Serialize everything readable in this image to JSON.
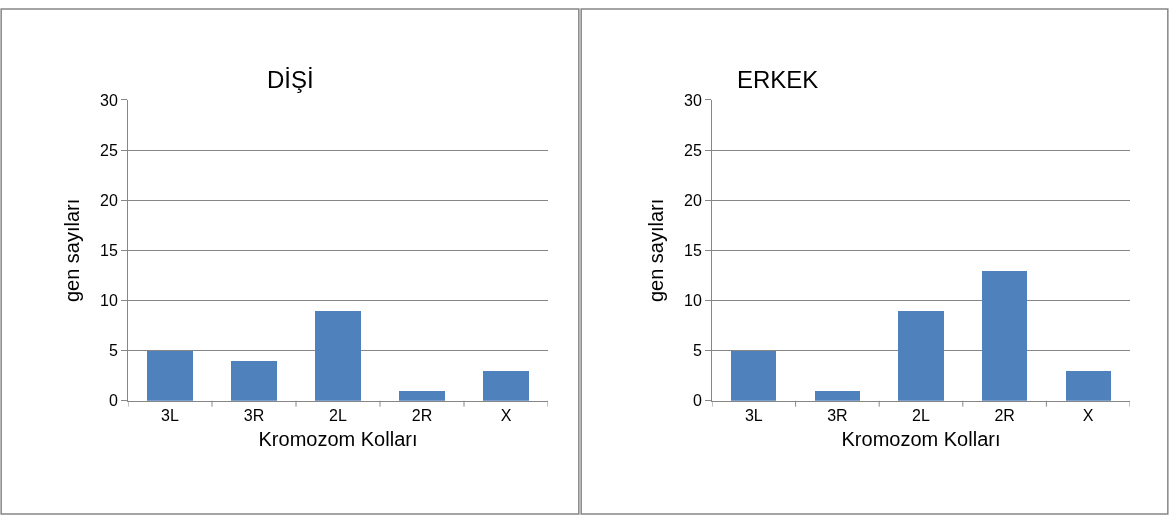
{
  "chart_data": [
    {
      "type": "bar",
      "title": "DİŞİ",
      "xlabel": "Kromozom Kolları",
      "ylabel": "gen sayıları",
      "categories": [
        "3L",
        "3R",
        "2L",
        "2R",
        "X"
      ],
      "values": [
        5,
        4,
        9,
        1,
        3
      ],
      "color": "#4f81bd",
      "ylim": [
        0,
        30
      ],
      "yticks": [
        0,
        5,
        10,
        15,
        20,
        25,
        30
      ],
      "grid": "y"
    },
    {
      "type": "bar",
      "title": "ERKEK",
      "xlabel": "Kromozom Kolları",
      "ylabel": "gen sayıları",
      "categories": [
        "3L",
        "3R",
        "2L",
        "2R",
        "X"
      ],
      "values": [
        5,
        1,
        9,
        13,
        3
      ],
      "color": "#4f81bd",
      "ylim": [
        0,
        30
      ],
      "yticks": [
        0,
        5,
        10,
        15,
        20,
        25,
        30
      ],
      "grid": "y"
    }
  ]
}
